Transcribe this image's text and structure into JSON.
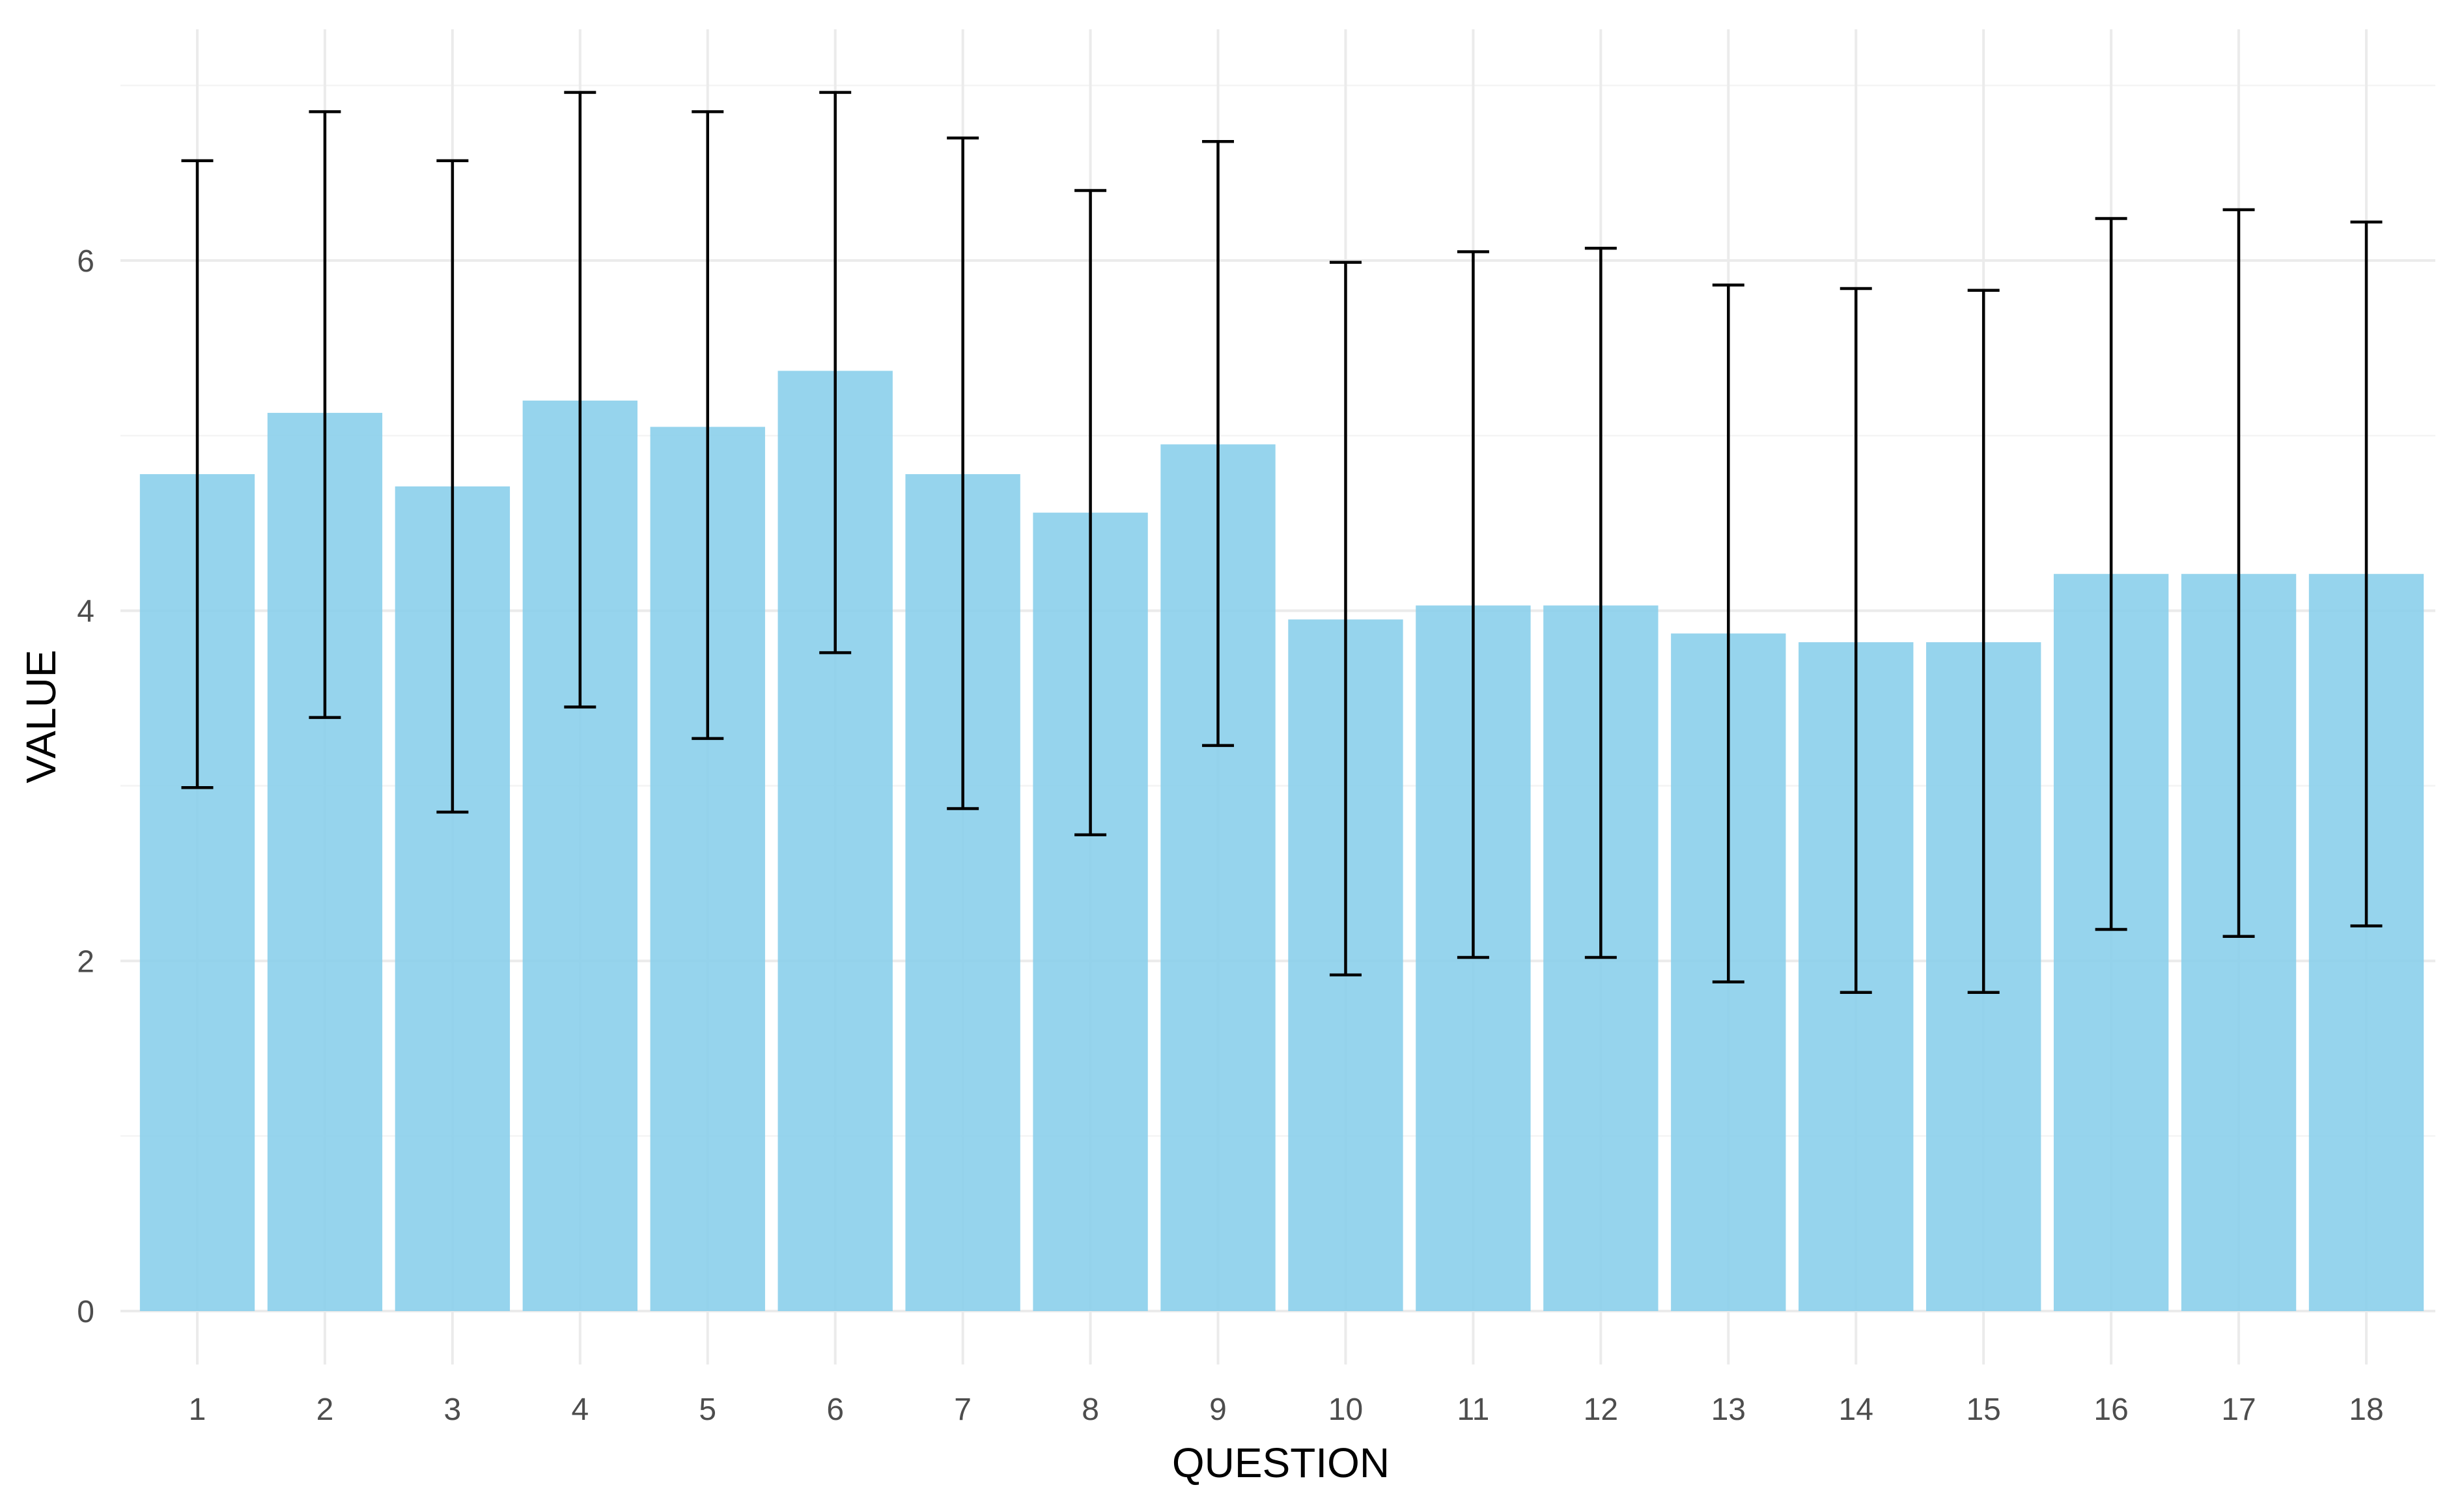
{
  "chart_data": {
    "type": "bar",
    "title": "",
    "xlabel": "QUESTION",
    "ylabel": "VALUE",
    "categories": [
      "1",
      "2",
      "3",
      "4",
      "5",
      "6",
      "7",
      "8",
      "9",
      "10",
      "11",
      "12",
      "13",
      "14",
      "15",
      "16",
      "17",
      "18"
    ],
    "values": [
      4.78,
      5.13,
      4.71,
      5.2,
      5.05,
      5.37,
      4.78,
      4.56,
      4.95,
      3.95,
      4.03,
      4.03,
      3.87,
      3.82,
      3.82,
      4.21,
      4.21,
      4.21
    ],
    "error_low": [
      2.99,
      3.39,
      2.85,
      3.45,
      3.27,
      3.76,
      2.87,
      2.72,
      3.23,
      1.92,
      2.02,
      2.02,
      1.88,
      1.82,
      1.82,
      2.18,
      2.14,
      2.2
    ],
    "error_high": [
      6.57,
      6.85,
      6.57,
      6.96,
      6.85,
      6.96,
      6.7,
      6.4,
      6.68,
      5.99,
      6.05,
      6.07,
      5.86,
      5.84,
      5.83,
      6.24,
      6.29,
      6.22
    ],
    "ylim": [
      0,
      7
    ],
    "yticks": [
      0,
      2,
      4,
      6
    ],
    "grid": true,
    "legend": "none",
    "bar_color": "#87CEEB",
    "error_bar_color": "#000000"
  }
}
